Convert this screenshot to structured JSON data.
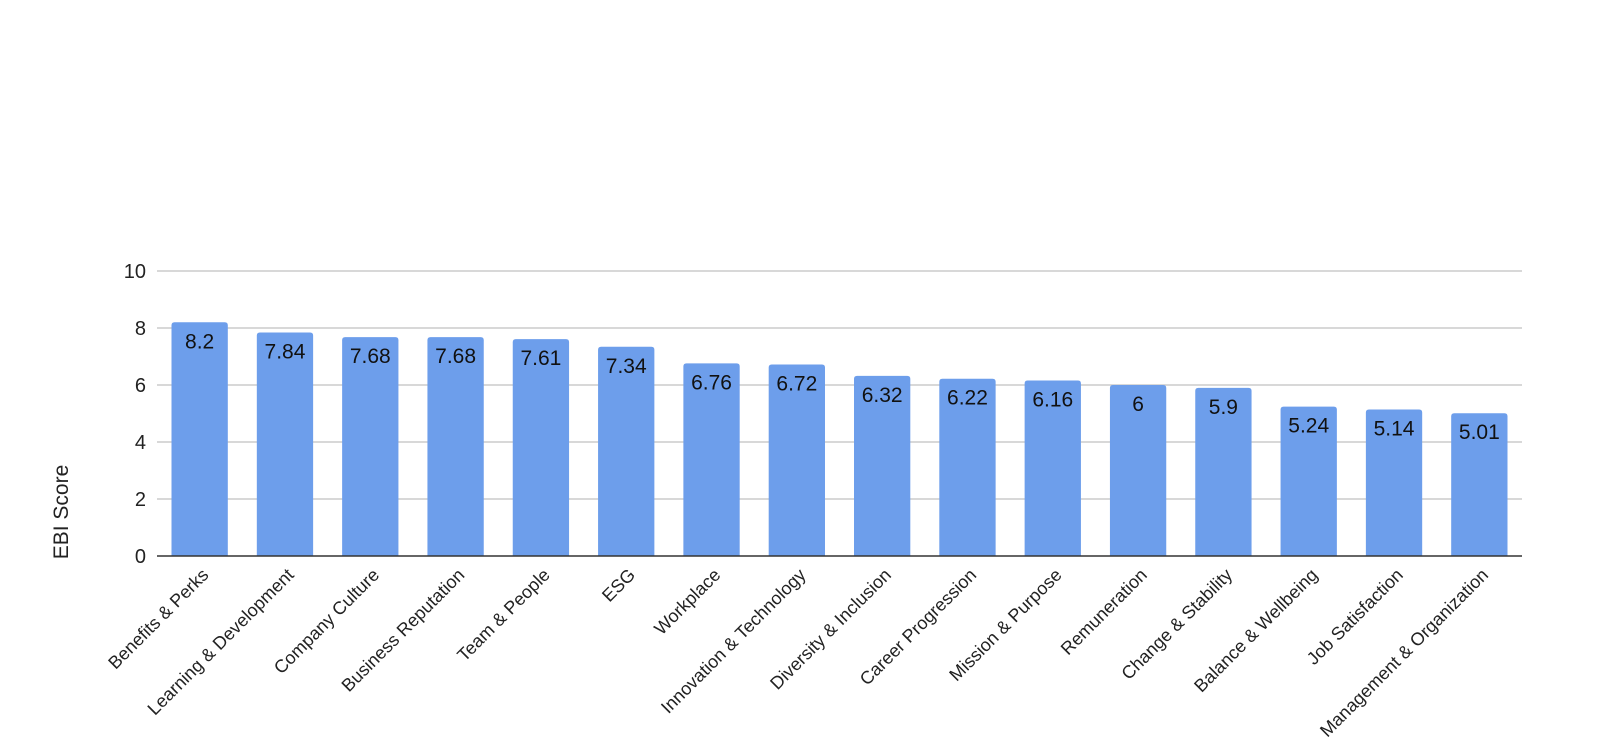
{
  "chart_data": {
    "type": "bar",
    "title": "",
    "xlabel": "",
    "ylabel": "EBI Score",
    "ylim": [
      0,
      10
    ],
    "yticks": [
      0,
      2,
      4,
      6,
      8,
      10
    ],
    "grid": true,
    "legend": "none",
    "bar_color": "#6d9eeb",
    "categories": [
      "Benefits & Perks",
      "Learning & Development",
      "Company Culture",
      "Business Reputation",
      "Team & People",
      "ESG",
      "Workplace",
      "Innovation & Technology",
      "Diversity & Inclusion",
      "Career Progression",
      "Mission & Purpose",
      "Remuneration",
      "Change & Stability",
      "Balance & Wellbeing",
      "Job Satisfaction",
      "Management & Organization"
    ],
    "values": [
      8.2,
      7.84,
      7.68,
      7.68,
      7.61,
      7.34,
      6.76,
      6.72,
      6.32,
      6.22,
      6.16,
      6,
      5.9,
      5.24,
      5.14,
      5.01
    ],
    "data_labels": [
      "8.2",
      "7.84",
      "7.68",
      "7.68",
      "7.61",
      "7.34",
      "6.76",
      "6.72",
      "6.32",
      "6.22",
      "6.16",
      "6",
      "5.9",
      "5.24",
      "5.14",
      "5.01"
    ]
  }
}
